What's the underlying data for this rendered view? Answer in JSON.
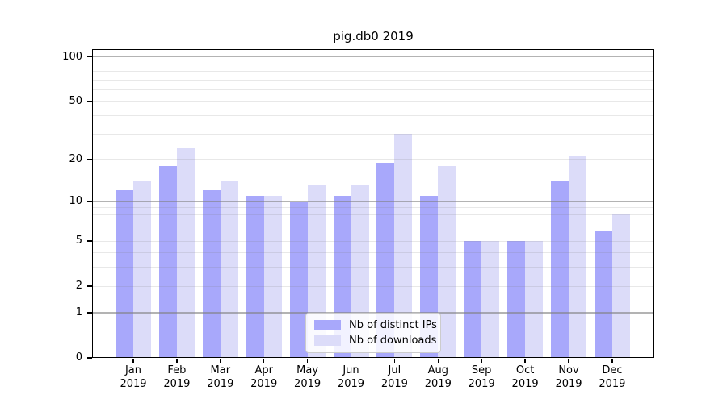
{
  "chart_data": {
    "type": "bar",
    "title": "pig.db0 2019",
    "categories": [
      "Jan",
      "Feb",
      "Mar",
      "Apr",
      "May",
      "Jun",
      "Jul",
      "Aug",
      "Sep",
      "Oct",
      "Nov",
      "Dec"
    ],
    "category_year": "2019",
    "series": [
      {
        "name": "Nb of distinct IPs",
        "color": "#a8a8fb",
        "values": [
          12,
          18,
          12,
          11,
          10,
          11,
          19,
          11,
          5,
          5,
          14,
          6
        ]
      },
      {
        "name": "Nb of downloads",
        "color": "#dcdcf9",
        "values": [
          14,
          24,
          14,
          11,
          13,
          13,
          30,
          18,
          5,
          5,
          21,
          8
        ]
      }
    ],
    "xlabel": "",
    "ylabel": "",
    "y_axis": {
      "scale": "log10(value+1)",
      "tick_values": [
        100,
        50,
        20,
        10,
        5,
        2,
        1,
        0
      ],
      "major_gridlines": [
        1,
        10,
        100
      ],
      "minor_gridlines": [
        2,
        3,
        4,
        5,
        6,
        7,
        8,
        9,
        20,
        30,
        40,
        50,
        60,
        70,
        80,
        90
      ],
      "range": [
        0,
        113
      ]
    },
    "legend": {
      "position": "bottom-center",
      "entries": [
        "Nb of distinct IPs",
        "Nb of downloads"
      ]
    },
    "grid": true
  },
  "colors": {
    "bar_distinct_ips": "#a8a8fb",
    "bar_downloads": "#dcdcf9",
    "grid_major": "#b0b0b0",
    "grid_minor": "#e8e8e8",
    "axis_frame": "#000000",
    "background": "#ffffff"
  }
}
